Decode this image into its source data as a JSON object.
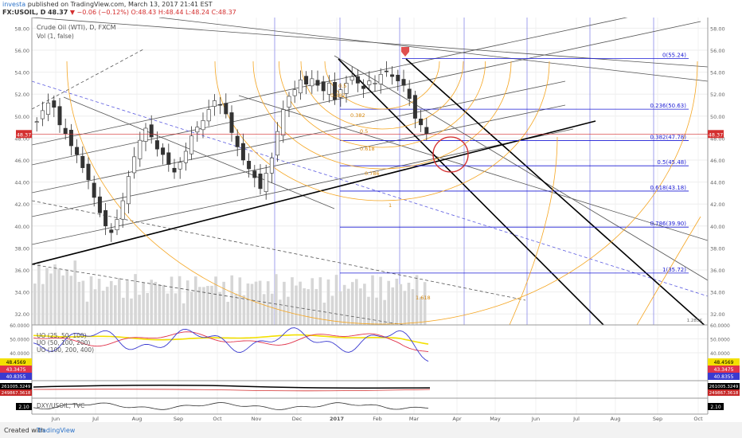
{
  "header": {
    "author": "investa",
    "published": "published on TradingView.com, March 13, 2017 21:41 EST",
    "symbol": "FX:USOIL, D",
    "price": "48.37",
    "change": "▼ −0.06 (−0.12%)",
    "ohlc": "O:48.43 H:48.44 L:48.24 C:48.37"
  },
  "legend": {
    "title": "Crude Oil (WTI), D, FXCM",
    "vol": "Vol (1, false)",
    "uo": [
      "UO (25, 50, 100)",
      "UO (50, 100, 200)",
      "UO (100, 200, 400)"
    ],
    "ratio": "DXY/USOIL, TVC"
  },
  "footer": {
    "created": "Created with",
    "brand": "TradingView"
  },
  "colors": {
    "up": "#ffffff",
    "down": "#333333",
    "fib": "#1a1ad4",
    "arc": "#f5a623",
    "price": "#d42f2f",
    "uo_yellow": "#f3e000",
    "uo_red": "#e0334b",
    "uo_blue": "#3a3ad0"
  },
  "chart_data": {
    "type": "candlestick",
    "title": "Crude Oil (WTI), D, FXCM",
    "ylim": [
      31,
      59
    ],
    "y_ticks": [
      "58.00",
      "56.00",
      "54.00",
      "52.00",
      "50.00",
      "48.00",
      "46.00",
      "44.00",
      "42.00",
      "40.00",
      "38.00",
      "36.00",
      "34.00",
      "32.00"
    ],
    "x_labels": [
      "Jun",
      "Jul",
      "Aug",
      "Sep",
      "Oct",
      "Nov",
      "Dec",
      "2017",
      "Feb",
      "Mar",
      "Apr",
      "May",
      "Jun",
      "Jul",
      "Aug",
      "Sep",
      "Oct"
    ],
    "last_price": "48.37",
    "fib_levels": [
      {
        "ratio": "0",
        "value": 55.24,
        "label": "0(55.24)"
      },
      {
        "ratio": "0.236",
        "value": 50.63,
        "label": "0.236(50.63)"
      },
      {
        "ratio": "0.382",
        "value": 47.78,
        "label": "0.382(47.78)"
      },
      {
        "ratio": "0.5",
        "value": 45.48,
        "label": "0.5(45.48)"
      },
      {
        "ratio": "0.618",
        "value": 43.18,
        "label": "0.618(43.18)"
      },
      {
        "ratio": "0.786",
        "value": 39.9,
        "label": "0.786(39.90)"
      },
      {
        "ratio": "1",
        "value": 35.72,
        "label": "1(35.72)"
      }
    ],
    "fan_labels": [
      "0.382",
      "0.5",
      "0.618",
      "0.786",
      "1",
      "1.618",
      "0.382",
      "0.5"
    ],
    "close_path": [
      49.5,
      50.5,
      51.2,
      50.8,
      49.2,
      48.4,
      47.3,
      46.5,
      45.3,
      44.2,
      42.6,
      41.2,
      40.0,
      39.4,
      40.6,
      42.3,
      44.5,
      46.3,
      47.8,
      48.9,
      48.1,
      47.0,
      46.5,
      45.6,
      44.9,
      45.8,
      46.8,
      48.2,
      49.0,
      49.6,
      50.6,
      51.4,
      51.0,
      50.2,
      48.5,
      47.2,
      46.0,
      45.2,
      44.4,
      43.4,
      44.8,
      46.2,
      48.6,
      50.6,
      51.8,
      52.4,
      53.3,
      52.9,
      53.4,
      52.8,
      52.3,
      53.0,
      51.5,
      52.4,
      53.0,
      53.6,
      53.0,
      52.5,
      53.2,
      53.0,
      53.8,
      54.1,
      53.6,
      53.2,
      52.8,
      51.6,
      49.8,
      49.2,
      48.4
    ],
    "volume_label": "1.285K",
    "uo": {
      "ylim": [
        20,
        60
      ],
      "y_ticks": [
        "60.0000",
        "50.0000",
        "40.0000"
      ],
      "values": [
        "48.4569",
        "43.3475",
        "40.8355"
      ]
    },
    "ratio_panel": {
      "values": [
        "261005.3249",
        "249867.3618"
      ]
    },
    "ratio_value": "2.10"
  }
}
